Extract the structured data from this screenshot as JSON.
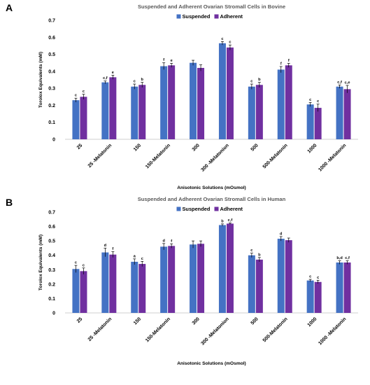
{
  "chart_data": [
    {
      "panel_label": "A",
      "type": "bar",
      "title": "Suspended and Adherent Ovarian Stromall Cells in Bovine",
      "xlabel": "Anisotonic Solutions (mOsmol)",
      "ylabel": "Torolox Equivalents (mM)",
      "ylim": [
        0,
        0.7
      ],
      "yticks": [
        "0",
        "0.1",
        "0.2",
        "0.3",
        "0.4",
        "0.5",
        "0.6",
        "0.7"
      ],
      "grid": false,
      "legend_position": "top-center",
      "categories": [
        "25",
        "25 -Melatonin",
        "150",
        "150-Melatonin",
        "300",
        "300 -Melatonion",
        "500",
        "500-Melatonin",
        "1000",
        "1000 -Melatonin"
      ],
      "series": [
        {
          "name": "Suspended",
          "color": "#4472C4",
          "values": [
            0.23,
            0.335,
            0.31,
            0.43,
            0.45,
            0.565,
            0.31,
            0.41,
            0.205,
            0.31
          ],
          "errors": [
            0.012,
            0.008,
            0.015,
            0.02,
            0.015,
            0.01,
            0.015,
            0.018,
            0.012,
            0.01
          ],
          "labels": [
            "c",
            "c,f",
            "c",
            "f",
            "",
            "c",
            "c",
            "f",
            "c",
            "c,f"
          ]
        },
        {
          "name": "Adherent",
          "color": "#7030A0",
          "values": [
            0.25,
            0.365,
            0.32,
            0.435,
            0.42,
            0.54,
            0.32,
            0.435,
            0.185,
            0.295
          ],
          "errors": [
            0.015,
            0.012,
            0.015,
            0.012,
            0.018,
            0.015,
            0.015,
            0.012,
            0.022,
            0.022
          ],
          "labels": [
            "c",
            "e",
            "b",
            "e",
            "",
            "c",
            "b",
            "f",
            "c",
            "c,e"
          ]
        }
      ]
    },
    {
      "panel_label": "B",
      "type": "bar",
      "title": "Suspended and Adherent Ovarian Stromall Cells in Human",
      "xlabel": "Anisotonic Solutions (mOsmol)",
      "ylabel": "Torolox Equivalents (mM)",
      "ylim": [
        0,
        0.7
      ],
      "yticks": [
        "0",
        "0.1",
        "0.2",
        "0.3",
        "0.4",
        "0.5",
        "0.6",
        "0.7"
      ],
      "grid": false,
      "legend_position": "top-center",
      "categories": [
        "25",
        "25 -Melatonin",
        "150",
        "150-Melatonin",
        "300",
        "300 -Melatonion",
        "500",
        "500-Melatonin",
        "1000",
        "1000 -Melatonin"
      ],
      "series": [
        {
          "name": "Suspended",
          "color": "#4472C4",
          "values": [
            0.305,
            0.42,
            0.355,
            0.46,
            0.475,
            0.61,
            0.4,
            0.515,
            0.225,
            0.35
          ],
          "errors": [
            0.025,
            0.03,
            0.02,
            0.022,
            0.025,
            0.008,
            0.015,
            0.015,
            0.008,
            0.012
          ],
          "labels": [
            "c",
            "d",
            "a",
            "d",
            "",
            "b",
            "c",
            "d",
            "c",
            "b,d"
          ]
        },
        {
          "name": "Adherent",
          "color": "#7030A0",
          "values": [
            0.29,
            0.405,
            0.34,
            0.465,
            0.48,
            0.62,
            0.37,
            0.505,
            0.215,
            0.35
          ],
          "errors": [
            0.022,
            0.02,
            0.018,
            0.015,
            0.02,
            0.005,
            0.015,
            0.015,
            0.012,
            0.012
          ],
          "labels": [
            "c",
            "f",
            "c",
            "f",
            "",
            "c,f",
            "b",
            "",
            "c",
            "c,f"
          ]
        }
      ]
    }
  ]
}
